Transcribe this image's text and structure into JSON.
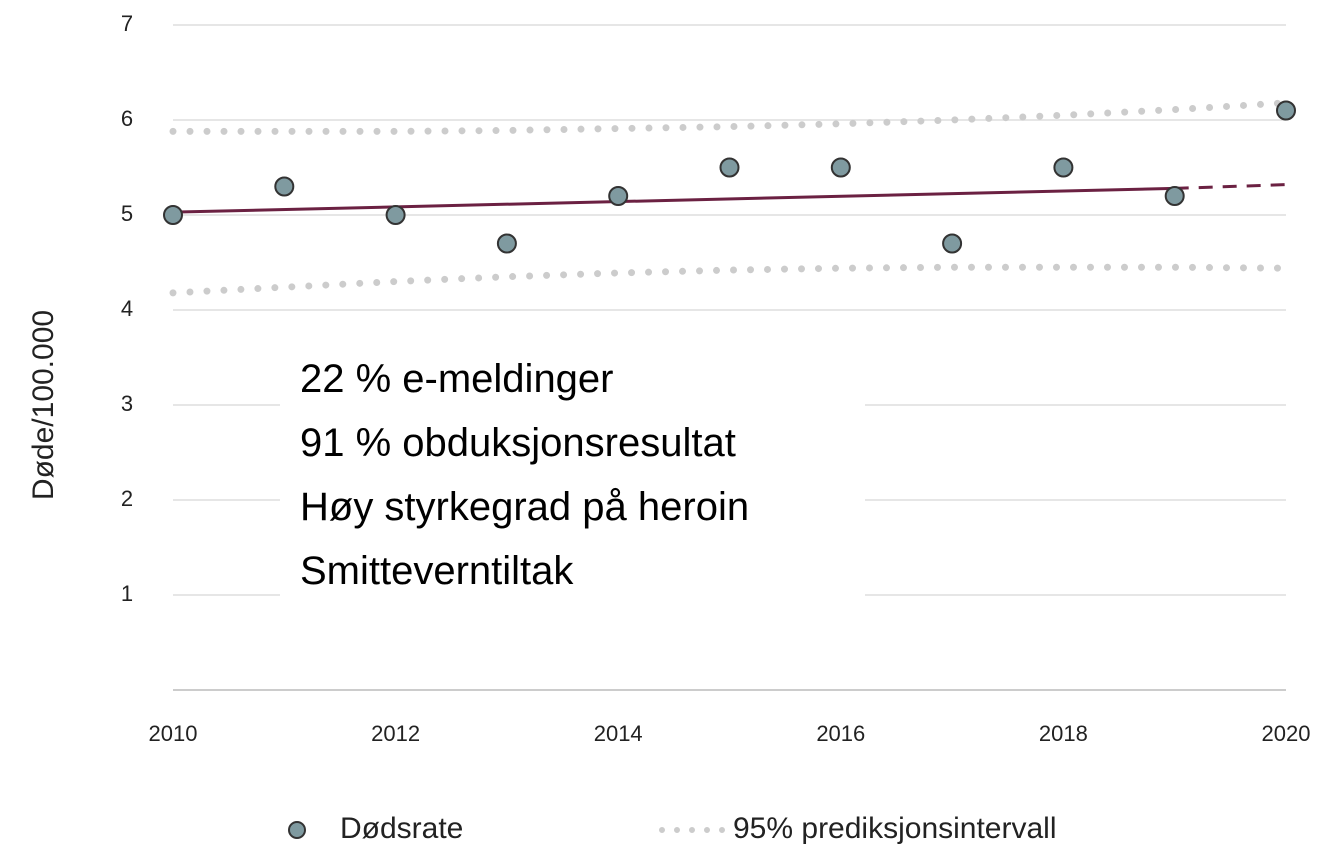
{
  "chart_data": {
    "type": "scatter",
    "y_label": "Døde/100.000",
    "x": [
      2010,
      2011,
      2012,
      2013,
      2014,
      2015,
      2016,
      2017,
      2018,
      2019,
      2020
    ],
    "series": [
      {
        "name": "Dødsrate",
        "color": "#7f9aa0",
        "values": [
          5.0,
          5.3,
          5.0,
          4.7,
          5.2,
          5.5,
          5.5,
          4.7,
          5.5,
          5.2,
          6.1
        ]
      }
    ],
    "interval": {
      "name": "95% prediksjonsintervall",
      "color": "#cccccc",
      "upper": [
        5.88,
        5.88,
        5.88,
        5.89,
        5.91,
        5.93,
        5.96,
        6.0,
        6.05,
        6.11,
        6.18
      ],
      "lower": [
        4.18,
        4.24,
        4.3,
        4.35,
        4.39,
        4.42,
        4.44,
        4.45,
        4.45,
        4.45,
        4.44
      ]
    },
    "trend": {
      "color": "#6b2142",
      "x": [
        2010,
        2019
      ],
      "values": [
        5.03,
        5.28
      ]
    },
    "forecast": {
      "color": "#6b2142",
      "x": [
        2019,
        2020
      ],
      "values": [
        5.28,
        5.32
      ]
    },
    "annotation": [
      "22 % e-meldinger",
      "91 % obduksjonsresultat",
      "Høy styrkegrad på heroin",
      "Smitteverntiltak"
    ],
    "xlim": [
      2010,
      2020
    ],
    "xticks": [
      2010,
      2012,
      2014,
      2016,
      2018,
      2020
    ],
    "ylim": [
      0,
      7
    ],
    "yticks": [
      1,
      2,
      3,
      4,
      5,
      6,
      7
    ],
    "grid": true
  }
}
